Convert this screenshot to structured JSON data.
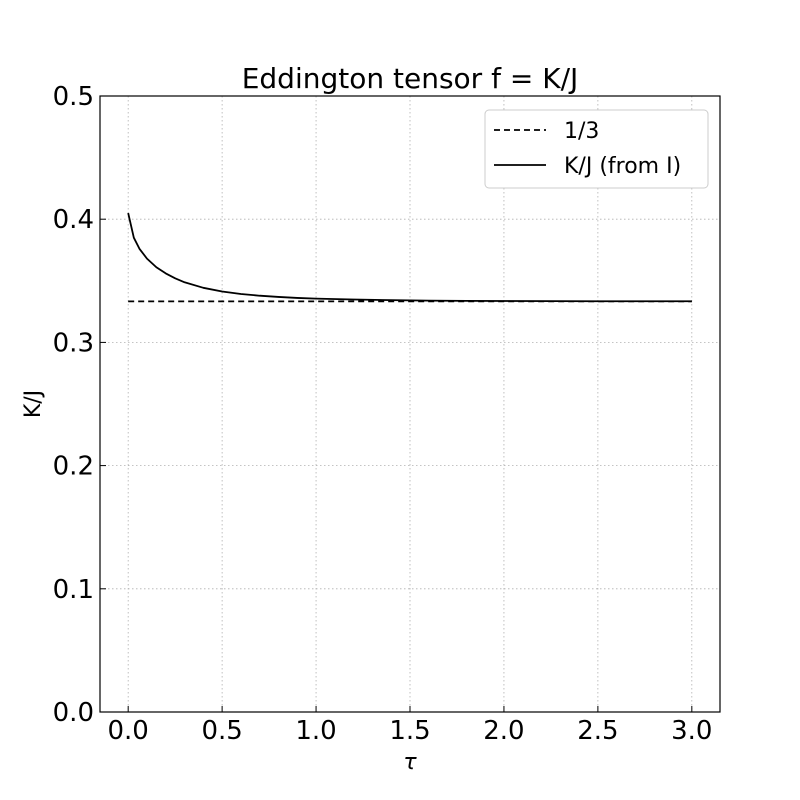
{
  "chart_data": {
    "type": "line",
    "title": "Eddington tensor f = K/J",
    "xlabel": "τ",
    "ylabel": "K/J",
    "xlim": [
      -0.15,
      3.15
    ],
    "ylim": [
      0.0,
      0.5
    ],
    "xticks": [
      0.0,
      0.5,
      1.0,
      1.5,
      2.0,
      2.5,
      3.0
    ],
    "xtick_labels": [
      "0.0",
      "0.5",
      "1.0",
      "1.5",
      "2.0",
      "2.5",
      "3.0"
    ],
    "yticks": [
      0.0,
      0.1,
      0.2,
      0.3,
      0.4,
      0.5
    ],
    "ytick_labels": [
      "0.0",
      "0.1",
      "0.2",
      "0.3",
      "0.4",
      "0.5"
    ],
    "grid": true,
    "legend_position": "upper right",
    "series": [
      {
        "name": "1/3",
        "style": "dashed",
        "color": "#000000",
        "x": [
          0.0,
          3.0
        ],
        "y": [
          0.3333,
          0.3333
        ]
      },
      {
        "name": "K/J (from I)",
        "style": "solid",
        "color": "#000000",
        "x": [
          0.0,
          0.03,
          0.06,
          0.1,
          0.15,
          0.2,
          0.25,
          0.3,
          0.4,
          0.5,
          0.6,
          0.7,
          0.8,
          0.9,
          1.0,
          1.2,
          1.4,
          1.6,
          1.8,
          2.0,
          2.5,
          3.0
        ],
        "y": [
          0.405,
          0.385,
          0.376,
          0.368,
          0.361,
          0.356,
          0.352,
          0.3488,
          0.3443,
          0.3413,
          0.3393,
          0.3379,
          0.3369,
          0.3361,
          0.3355,
          0.3348,
          0.3343,
          0.3339,
          0.3337,
          0.3336,
          0.3334,
          0.3334
        ]
      }
    ]
  }
}
